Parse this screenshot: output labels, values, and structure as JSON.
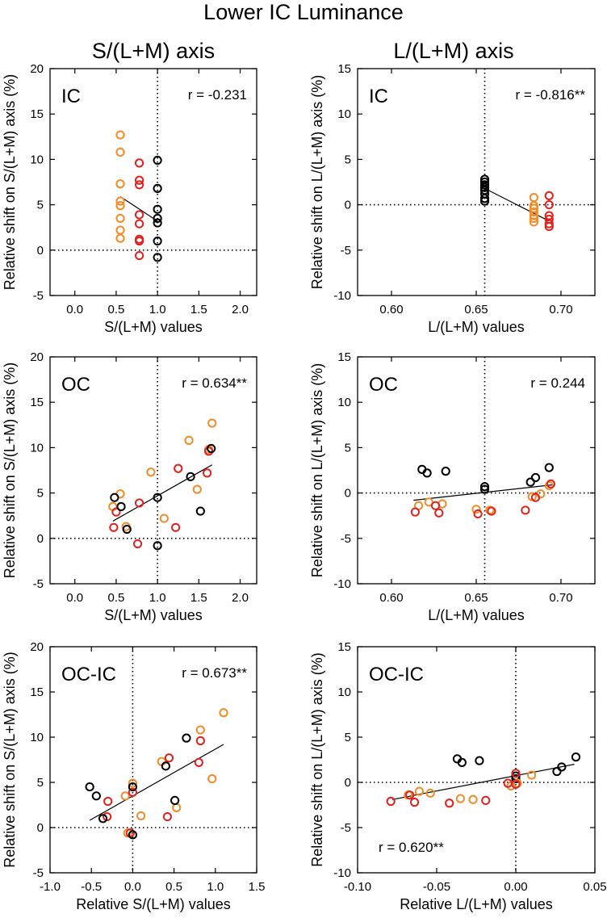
{
  "figure": {
    "title": "Lower IC Luminance",
    "col_titles": [
      "S/(L+M) axis",
      "L/(L+M) axis"
    ]
  },
  "colors": {
    "orange": "#F28C28",
    "red": "#E0231F",
    "black": "#000000"
  },
  "chart_data": [
    {
      "type": "scatter",
      "panel": "S-IC",
      "label": "IC",
      "r_text": "r = -0.231",
      "r_position": "top-right",
      "xlabel": "S/(L+M) values",
      "ylabel": "Relative shift on S/(L+M) axis (%)",
      "xlim": [
        -0.3,
        2.2
      ],
      "ylim": [
        -5,
        20
      ],
      "xticks": [
        0.0,
        0.5,
        1.0,
        1.5,
        2.0
      ],
      "xticklabels": [
        "0.0",
        "0.5",
        "1.0",
        "1.5",
        "2.0"
      ],
      "yticks": [
        -5,
        0,
        5,
        10,
        15,
        20
      ],
      "yticklabels": [
        "-5",
        "0",
        "5",
        "10",
        "15",
        "20"
      ],
      "vref": 1.0,
      "href": 0,
      "fit": {
        "x": [
          0.55,
          1.0
        ],
        "y": [
          5.9,
          3.2
        ]
      },
      "series": [
        {
          "name": "orange",
          "color": "orange",
          "points": [
            [
              0.55,
              12.7
            ],
            [
              0.55,
              10.8
            ],
            [
              0.55,
              7.3
            ],
            [
              0.55,
              5.4
            ],
            [
              0.55,
              4.9
            ],
            [
              0.55,
              3.5
            ],
            [
              0.55,
              2.2
            ],
            [
              0.55,
              1.3
            ]
          ]
        },
        {
          "name": "red",
          "color": "red",
          "points": [
            [
              0.78,
              9.6
            ],
            [
              0.78,
              7.7
            ],
            [
              0.78,
              7.2
            ],
            [
              0.78,
              3.9
            ],
            [
              0.78,
              2.9
            ],
            [
              0.78,
              1.2
            ],
            [
              0.78,
              1.0
            ],
            [
              0.78,
              -0.6
            ]
          ]
        },
        {
          "name": "black",
          "color": "black",
          "points": [
            [
              1.0,
              9.9
            ],
            [
              1.0,
              6.8
            ],
            [
              1.0,
              4.5
            ],
            [
              1.0,
              3.5
            ],
            [
              1.0,
              3.0
            ],
            [
              1.0,
              1.0
            ],
            [
              1.0,
              -0.8
            ]
          ]
        }
      ]
    },
    {
      "type": "scatter",
      "panel": "L-IC",
      "label": "IC",
      "r_text": "r = -0.816**",
      "r_position": "top-right",
      "xlabel": "L/(L+M) values",
      "ylabel": "Relative shift on L/(L+M) axis (%)",
      "xlim": [
        0.58,
        0.72
      ],
      "ylim": [
        -10,
        15
      ],
      "xticks": [
        0.6,
        0.65,
        0.7
      ],
      "xticklabels": [
        "0.60",
        "0.65",
        "0.70"
      ],
      "yticks": [
        -10,
        -5,
        0,
        5,
        10,
        15
      ],
      "yticklabels": [
        "-10",
        "-5",
        "0",
        "5",
        "10",
        "15"
      ],
      "vref": 0.655,
      "href": 0,
      "fit": {
        "x": [
          0.655,
          0.693
        ],
        "y": [
          1.8,
          -1.8
        ]
      },
      "series": [
        {
          "name": "black",
          "color": "black",
          "points": [
            [
              0.655,
              2.8
            ],
            [
              0.655,
              2.5
            ],
            [
              0.655,
              2.2
            ],
            [
              0.655,
              1.9
            ],
            [
              0.655,
              1.6
            ],
            [
              0.655,
              1.2
            ],
            [
              0.655,
              0.7
            ],
            [
              0.655,
              0.4
            ]
          ]
        },
        {
          "name": "orange",
          "color": "orange",
          "points": [
            [
              0.684,
              0.8
            ],
            [
              0.684,
              -0.1
            ],
            [
              0.684,
              -0.4
            ],
            [
              0.684,
              -0.8
            ],
            [
              0.684,
              -1.2
            ],
            [
              0.684,
              -1.5
            ],
            [
              0.684,
              -1.9
            ]
          ]
        },
        {
          "name": "red",
          "color": "red",
          "points": [
            [
              0.693,
              1.0
            ],
            [
              0.693,
              0.0
            ],
            [
              0.693,
              -1.2
            ],
            [
              0.693,
              -1.6
            ],
            [
              0.693,
              -2.1
            ],
            [
              0.693,
              -2.4
            ]
          ]
        }
      ]
    },
    {
      "type": "scatter",
      "panel": "S-OC",
      "label": "OC",
      "r_text": "r = 0.634**",
      "r_position": "top-right",
      "xlabel": "S/(L+M) values",
      "ylabel": "Relative shift on S/(L+M) axis (%)",
      "xlim": [
        -0.3,
        2.2
      ],
      "ylim": [
        -5,
        20
      ],
      "xticks": [
        0.0,
        0.5,
        1.0,
        1.5,
        2.0
      ],
      "xticklabels": [
        "0.0",
        "0.5",
        "1.0",
        "1.5",
        "2.0"
      ],
      "yticks": [
        -5,
        0,
        5,
        10,
        15,
        20
      ],
      "yticklabels": [
        "-5",
        "0",
        "5",
        "10",
        "15",
        "20"
      ],
      "vref": 1.0,
      "href": 0,
      "fit": {
        "x": [
          0.46,
          1.66
        ],
        "y": [
          1.9,
          8.1
        ]
      },
      "series": [
        {
          "name": "orange",
          "color": "orange",
          "points": [
            [
              1.66,
              12.7
            ],
            [
              1.38,
              10.8
            ],
            [
              1.62,
              9.8
            ],
            [
              0.92,
              7.3
            ],
            [
              0.55,
              4.9
            ],
            [
              1.48,
              5.4
            ],
            [
              0.46,
              3.5
            ],
            [
              1.08,
              2.2
            ],
            [
              0.62,
              1.3
            ]
          ]
        },
        {
          "name": "red",
          "color": "red",
          "points": [
            [
              1.62,
              9.6
            ],
            [
              1.25,
              7.7
            ],
            [
              1.6,
              7.2
            ],
            [
              0.78,
              3.9
            ],
            [
              0.5,
              2.9
            ],
            [
              0.47,
              1.2
            ],
            [
              1.22,
              1.2
            ],
            [
              0.76,
              -0.6
            ]
          ]
        },
        {
          "name": "black",
          "color": "black",
          "points": [
            [
              1.65,
              9.9
            ],
            [
              1.4,
              6.8
            ],
            [
              1.0,
              4.5
            ],
            [
              0.48,
              4.5
            ],
            [
              0.56,
              3.5
            ],
            [
              1.52,
              3.0
            ],
            [
              0.63,
              1.0
            ],
            [
              1.0,
              -0.8
            ]
          ]
        }
      ]
    },
    {
      "type": "scatter",
      "panel": "L-OC",
      "label": "OC",
      "r_text": "r = 0.244",
      "r_position": "top-right",
      "xlabel": "L/(L+M) values",
      "ylabel": "Relative shift on L/(L+M) axis (%)",
      "xlim": [
        0.58,
        0.72
      ],
      "ylim": [
        -10,
        15
      ],
      "xticks": [
        0.6,
        0.65,
        0.7
      ],
      "xticklabels": [
        "0.60",
        "0.65",
        "0.70"
      ],
      "yticks": [
        -10,
        -5,
        0,
        5,
        10,
        15
      ],
      "yticklabels": [
        "-10",
        "-5",
        "0",
        "5",
        "10",
        "15"
      ],
      "vref": 0.655,
      "href": 0,
      "fit": {
        "x": [
          0.613,
          0.695
        ],
        "y": [
          -0.8,
          0.9
        ]
      },
      "series": [
        {
          "name": "black",
          "color": "black",
          "points": [
            [
              0.618,
              2.6
            ],
            [
              0.621,
              2.2
            ],
            [
              0.632,
              2.4
            ],
            [
              0.655,
              0.7
            ],
            [
              0.655,
              0.4
            ],
            [
              0.682,
              1.2
            ],
            [
              0.685,
              1.7
            ],
            [
              0.693,
              2.8
            ]
          ]
        },
        {
          "name": "orange",
          "color": "orange",
          "points": [
            [
              0.616,
              -1.4
            ],
            [
              0.622,
              -1.0
            ],
            [
              0.63,
              -1.2
            ],
            [
              0.65,
              -1.8
            ],
            [
              0.658,
              -1.9
            ],
            [
              0.683,
              -0.4
            ],
            [
              0.688,
              -0.1
            ],
            [
              0.693,
              0.8
            ]
          ]
        },
        {
          "name": "red",
          "color": "red",
          "points": [
            [
              0.614,
              -2.1
            ],
            [
              0.626,
              -1.4
            ],
            [
              0.628,
              -2.2
            ],
            [
              0.651,
              -2.3
            ],
            [
              0.659,
              -2.0
            ],
            [
              0.679,
              -1.9
            ],
            [
              0.685,
              -0.5
            ],
            [
              0.694,
              1.0
            ]
          ]
        }
      ]
    },
    {
      "type": "scatter",
      "panel": "S-OCIC",
      "label": "OC-IC",
      "r_text": "r = 0.673**",
      "r_position": "top-right",
      "xlabel": "Relative S/(L+M) values",
      "ylabel": "Relative shift on S/(L+M) axis (%)",
      "xlim": [
        -1.0,
        1.5
      ],
      "ylim": [
        -5,
        20
      ],
      "xticks": [
        -1.0,
        -0.5,
        0.0,
        0.5,
        1.0,
        1.5
      ],
      "xticklabels": [
        "-1.0",
        "-0.5",
        "0.0",
        "0.5",
        "1.0",
        "1.5"
      ],
      "yticks": [
        -5,
        0,
        5,
        10,
        15,
        20
      ],
      "yticklabels": [
        "-5",
        "0",
        "5",
        "10",
        "15",
        "20"
      ],
      "vref": 0.0,
      "href": 0,
      "fit": {
        "x": [
          -0.52,
          1.1
        ],
        "y": [
          0.8,
          9.2
        ]
      },
      "series": [
        {
          "name": "orange",
          "color": "orange",
          "points": [
            [
              1.1,
              12.7
            ],
            [
              0.82,
              10.8
            ],
            [
              0.35,
              7.3
            ],
            [
              0.0,
              4.9
            ],
            [
              0.96,
              5.4
            ],
            [
              -0.09,
              3.5
            ],
            [
              0.53,
              2.2
            ],
            [
              0.1,
              1.3
            ],
            [
              -0.06,
              -0.6
            ]
          ]
        },
        {
          "name": "red",
          "color": "red",
          "points": [
            [
              0.82,
              9.6
            ],
            [
              0.44,
              7.7
            ],
            [
              0.8,
              7.2
            ],
            [
              0.0,
              3.9
            ],
            [
              -0.3,
              2.9
            ],
            [
              -0.31,
              1.2
            ],
            [
              0.42,
              1.2
            ],
            [
              -0.03,
              -0.6
            ]
          ]
        },
        {
          "name": "black",
          "color": "black",
          "points": [
            [
              0.65,
              9.9
            ],
            [
              0.4,
              6.8
            ],
            [
              0.0,
              4.5
            ],
            [
              -0.52,
              4.5
            ],
            [
              -0.44,
              3.5
            ],
            [
              0.51,
              3.0
            ],
            [
              -0.36,
              1.0
            ],
            [
              0.0,
              -0.8
            ]
          ]
        }
      ]
    },
    {
      "type": "scatter",
      "panel": "L-OCIC",
      "label": "OC-IC",
      "r_text": "r = 0.620**",
      "r_position": "bottom-left",
      "xlabel": "Relative L/(L+M) values",
      "ylabel": "Relative shift on L/(L+M) axis (%)",
      "xlim": [
        -0.1,
        0.05
      ],
      "ylim": [
        -10,
        15
      ],
      "xticks": [
        -0.1,
        -0.05,
        0.0,
        0.05
      ],
      "xticklabels": [
        "-0.10",
        "-0.05",
        "0.00",
        "0.05"
      ],
      "yticks": [
        -10,
        -5,
        0,
        5,
        10,
        15
      ],
      "yticklabels": [
        "-10",
        "-5",
        "0",
        "5",
        "10",
        "15"
      ],
      "vref": 0.0,
      "href": 0,
      "fit": {
        "x": [
          -0.078,
          0.037
        ],
        "y": [
          -1.9,
          2.0
        ]
      },
      "series": [
        {
          "name": "black",
          "color": "black",
          "points": [
            [
              -0.037,
              2.6
            ],
            [
              -0.034,
              2.2
            ],
            [
              -0.023,
              2.4
            ],
            [
              0.0,
              0.7
            ],
            [
              0.0,
              0.4
            ],
            [
              0.026,
              1.2
            ],
            [
              0.029,
              1.7
            ],
            [
              0.038,
              2.8
            ]
          ]
        },
        {
          "name": "orange",
          "color": "orange",
          "points": [
            [
              -0.068,
              -1.4
            ],
            [
              -0.061,
              -1.0
            ],
            [
              -0.054,
              -1.2
            ],
            [
              -0.035,
              -1.8
            ],
            [
              -0.027,
              -1.9
            ],
            [
              -0.003,
              -0.4
            ],
            [
              0.001,
              -0.1
            ],
            [
              0.01,
              0.8
            ]
          ]
        },
        {
          "name": "red",
          "color": "red",
          "points": [
            [
              -0.079,
              -2.1
            ],
            [
              -0.067,
              -1.4
            ],
            [
              -0.064,
              -2.2
            ],
            [
              -0.042,
              -2.3
            ],
            [
              -0.019,
              -2.0
            ],
            [
              -0.005,
              -0.1
            ],
            [
              0.0,
              -0.2
            ],
            [
              0.0,
              1.0
            ]
          ]
        }
      ]
    }
  ]
}
